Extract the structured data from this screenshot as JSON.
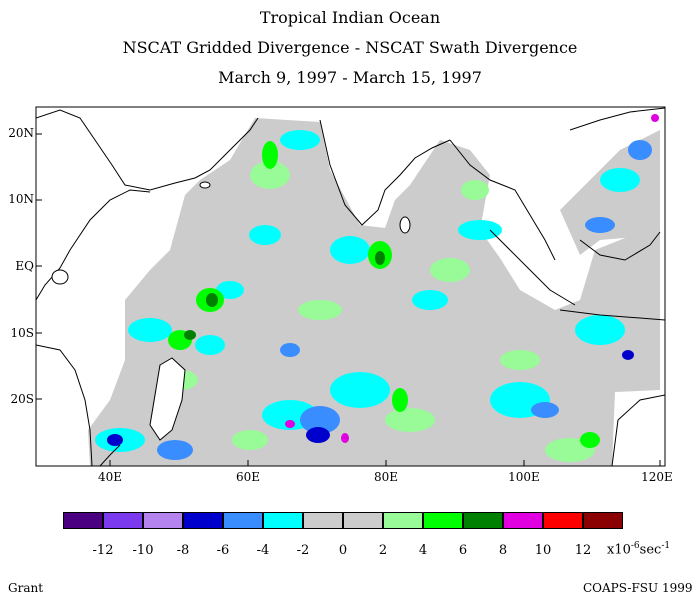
{
  "header": {
    "title": "Tropical Indian Ocean",
    "subtitle": "NSCAT Gridded Divergence - NSCAT Swath Divergence",
    "dates": "March 9, 1997 - March 15, 1997"
  },
  "axes": {
    "lat_labels": [
      "20N",
      "10N",
      "EQ",
      "10S",
      "20S"
    ],
    "lon_labels": [
      "40E",
      "60E",
      "80E",
      "100E",
      "120E"
    ],
    "lon_range": [
      30,
      120
    ],
    "lat_range": [
      -30,
      25
    ]
  },
  "colorbar": {
    "colors": [
      "#4b0082",
      "#7b3aee",
      "#b483ee",
      "#0000cc",
      "#3a8dff",
      "#00ffff",
      "#cccccc",
      "#cccccc",
      "#98fb98",
      "#00ff00",
      "#008000",
      "#e000e0",
      "#ff0000",
      "#8b0000"
    ],
    "labels": [
      "-12",
      "-10",
      "-8",
      "-6",
      "-4",
      "-2",
      "0",
      "2",
      "4",
      "6",
      "8",
      "10",
      "12"
    ],
    "unit_base": "x10",
    "unit_exp": "-6",
    "unit_tail": "sec",
    "unit_tail_exp": "-1"
  },
  "footer": {
    "left": "Grant",
    "right": "COAPS-FSU 1999"
  }
}
